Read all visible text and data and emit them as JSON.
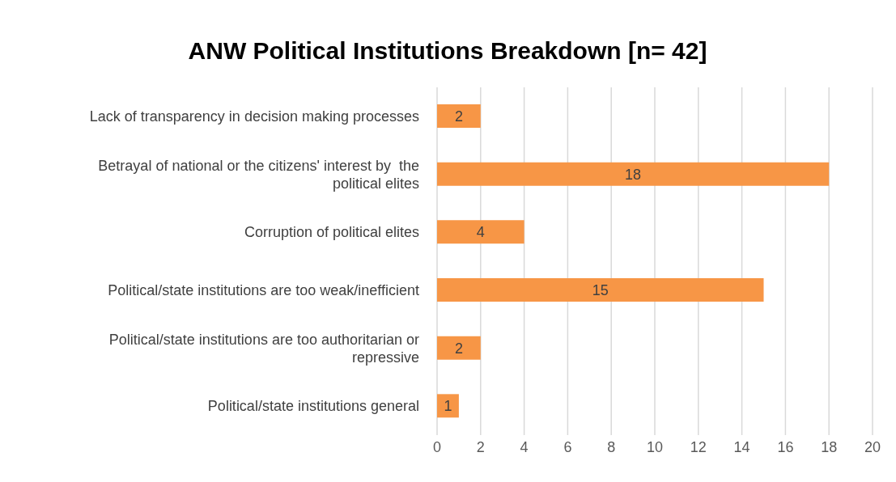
{
  "chart_data": {
    "type": "bar",
    "orientation": "horizontal",
    "title": "ANW Political Institutions Breakdown [n= 42]",
    "categories": [
      "Lack of transparency in decision making processes",
      "Betrayal of national or the citizens' interest by  the political elites",
      "Corruption of political elites",
      "Political/state institutions are too weak/inefficient",
      "Political/state institutions are too authoritarian or repressive",
      "Political/state institutions general"
    ],
    "values": [
      2,
      18,
      4,
      15,
      2,
      1
    ],
    "color": "#f79646",
    "xlim": [
      0,
      20
    ],
    "xticks": [
      0,
      2,
      4,
      6,
      8,
      10,
      12,
      14,
      16,
      18,
      20
    ],
    "grid": "x",
    "data_labels": true
  }
}
